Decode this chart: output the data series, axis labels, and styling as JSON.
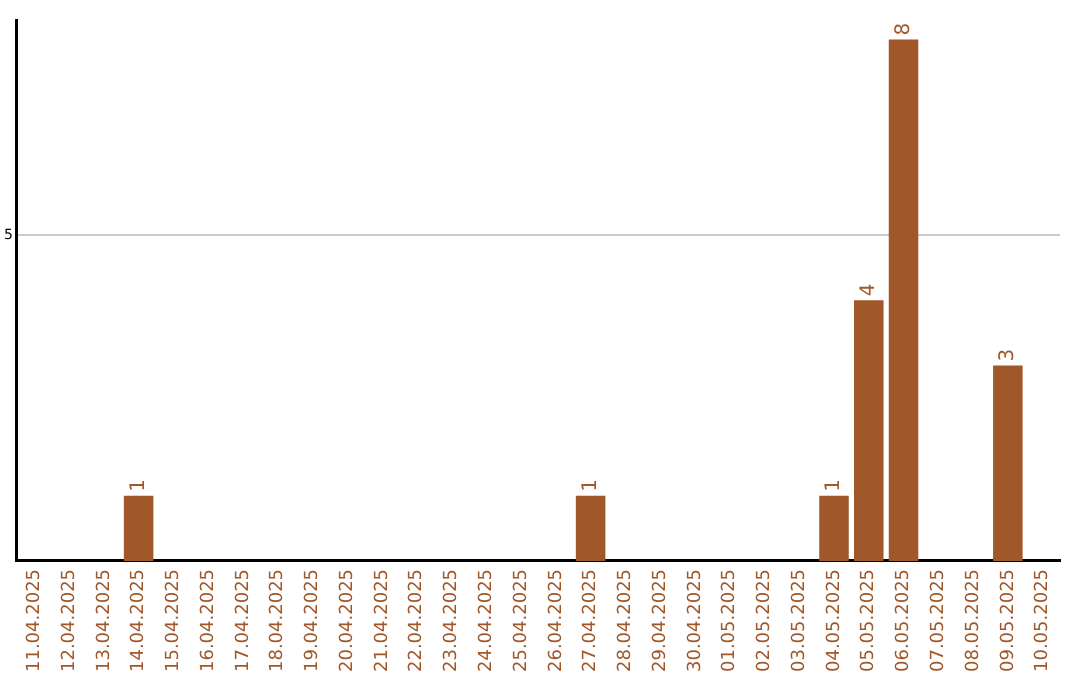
{
  "chart_data": {
    "type": "bar",
    "categories": [
      "11.04.2025",
      "12.04.2025",
      "13.04.2025",
      "14.04.2025",
      "15.04.2025",
      "16.04.2025",
      "17.04.2025",
      "18.04.2025",
      "19.04.2025",
      "20.04.2025",
      "21.04.2025",
      "22.04.2025",
      "23.04.2025",
      "24.04.2025",
      "25.04.2025",
      "26.04.2025",
      "27.04.2025",
      "28.04.2025",
      "29.04.2025",
      "30.04.2025",
      "01.05.2025",
      "02.05.2025",
      "03.05.2025",
      "04.05.2025",
      "05.05.2025",
      "06.05.2025",
      "07.05.2025",
      "08.05.2025",
      "09.05.2025",
      "10.05.2025"
    ],
    "values": [
      0,
      0,
      0,
      1,
      0,
      0,
      0,
      0,
      0,
      0,
      0,
      0,
      0,
      0,
      0,
      0,
      1,
      0,
      0,
      0,
      0,
      0,
      0,
      1,
      4,
      8,
      0,
      0,
      3,
      0
    ],
    "value_labels": [
      null,
      null,
      null,
      "1",
      null,
      null,
      null,
      null,
      null,
      null,
      null,
      null,
      null,
      null,
      null,
      null,
      "1",
      null,
      null,
      null,
      null,
      null,
      null,
      "1",
      "4",
      "8",
      null,
      null,
      "3",
      null
    ],
    "color": "#a0582a",
    "ylim": [
      0,
      8.3
    ],
    "yticks": [
      5
    ],
    "grid": "y"
  }
}
